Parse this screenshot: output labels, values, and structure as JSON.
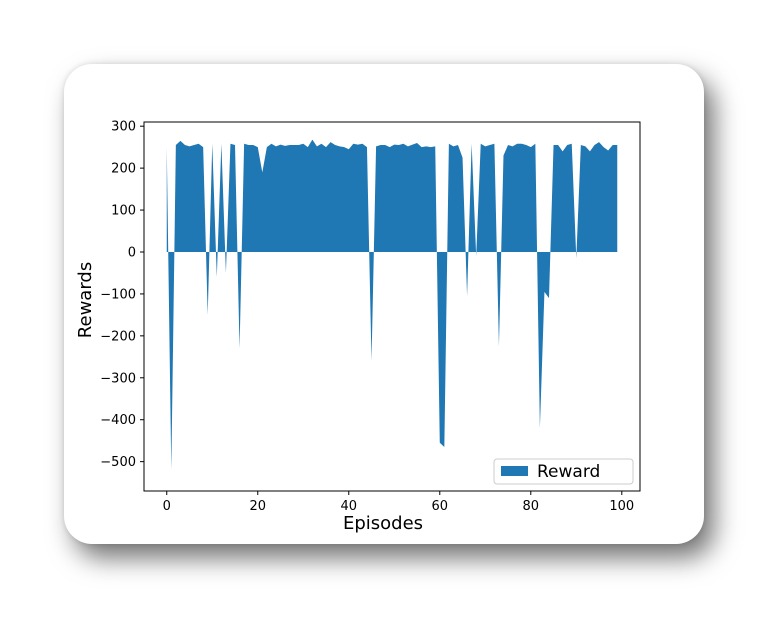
{
  "chart_data": {
    "type": "area",
    "xlabel": "Episodes",
    "ylabel": "Rewards",
    "xlim": [
      -5,
      104
    ],
    "ylim": [
      -570,
      310
    ],
    "xticks": [
      "0",
      "20",
      "40",
      "60",
      "80",
      "100"
    ],
    "yticks": [
      "300",
      "200",
      "100",
      "0",
      "−100",
      "−200",
      "−300",
      "−400",
      "−500"
    ],
    "legend": "bottom-right",
    "series": [
      {
        "name": "Reward",
        "color": "#1f77b4",
        "x": [
          0,
          1,
          2,
          3,
          4,
          5,
          6,
          7,
          8,
          9,
          10,
          11,
          12,
          13,
          14,
          15,
          16,
          17,
          18,
          19,
          20,
          21,
          22,
          23,
          24,
          25,
          26,
          27,
          28,
          29,
          30,
          31,
          32,
          33,
          34,
          35,
          36,
          37,
          38,
          39,
          40,
          41,
          42,
          43,
          44,
          45,
          46,
          47,
          48,
          49,
          50,
          51,
          52,
          53,
          54,
          55,
          56,
          57,
          58,
          59,
          60,
          61,
          62,
          63,
          64,
          65,
          66,
          67,
          68,
          69,
          70,
          71,
          72,
          73,
          74,
          75,
          76,
          77,
          78,
          79,
          80,
          81,
          82,
          83,
          84,
          85,
          86,
          87,
          88,
          89,
          90,
          91,
          92,
          93,
          94,
          95,
          96,
          97,
          98,
          99
        ],
        "values": [
          250,
          -520,
          255,
          265,
          255,
          252,
          255,
          258,
          250,
          -150,
          258,
          -60,
          258,
          -50,
          258,
          255,
          -230,
          258,
          255,
          255,
          250,
          190,
          250,
          258,
          252,
          256,
          253,
          255,
          255,
          255,
          258,
          250,
          268,
          252,
          258,
          250,
          262,
          255,
          252,
          250,
          245,
          258,
          256,
          258,
          250,
          -260,
          252,
          255,
          255,
          250,
          256,
          255,
          258,
          252,
          256,
          260,
          250,
          252,
          250,
          252,
          -455,
          -465,
          258,
          252,
          255,
          225,
          -105,
          258,
          -10,
          258,
          252,
          255,
          258,
          -225,
          230,
          255,
          252,
          258,
          258,
          255,
          250,
          258,
          -420,
          -95,
          -110,
          255,
          255,
          240,
          255,
          258,
          -15,
          255,
          252,
          240,
          255,
          262,
          250,
          242,
          255,
          255
        ]
      }
    ]
  }
}
